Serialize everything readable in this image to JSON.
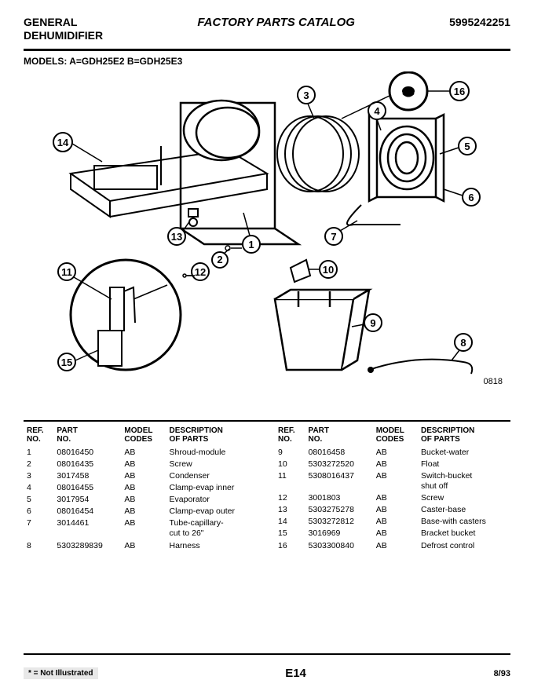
{
  "header": {
    "brand": "GENERAL",
    "product": "DEHUMIDIFIER",
    "title": "FACTORY PARTS CATALOG",
    "catalog_no": "5995242251"
  },
  "models_line": "MODELS:   A=GDH25E2   B=GDH25E3",
  "diagram": {
    "code": "0818",
    "callouts": [
      "1",
      "2",
      "3",
      "4",
      "5",
      "6",
      "7",
      "8",
      "9",
      "10",
      "11",
      "12",
      "13",
      "14",
      "15",
      "16"
    ]
  },
  "table": {
    "headers": {
      "ref": "REF.\nNO.",
      "part": "PART\nNO.",
      "model": "MODEL\nCODES",
      "desc": "DESCRIPTION\nOF PARTS"
    },
    "left": [
      {
        "ref": "1",
        "part": "08016450",
        "model": "AB",
        "desc": "Shroud-module"
      },
      {
        "ref": "2",
        "part": "08016435",
        "model": "AB",
        "desc": "Screw"
      },
      {
        "ref": "3",
        "part": "3017458",
        "model": "AB",
        "desc": "Condenser"
      },
      {
        "ref": "4",
        "part": "08016455",
        "model": "AB",
        "desc": "Clamp-evap inner"
      },
      {
        "ref": "5",
        "part": "3017954",
        "model": "AB",
        "desc": "Evaporator"
      },
      {
        "ref": "6",
        "part": "08016454",
        "model": "AB",
        "desc": "Clamp-evap outer"
      },
      {
        "ref": "7",
        "part": "3014461",
        "model": "AB",
        "desc": "Tube-capillary-\ncut to 26\""
      },
      {
        "ref": "8",
        "part": "5303289839",
        "model": "AB",
        "desc": "Harness"
      }
    ],
    "right": [
      {
        "ref": "9",
        "part": "08016458",
        "model": "AB",
        "desc": "Bucket-water"
      },
      {
        "ref": "10",
        "part": "5303272520",
        "model": "AB",
        "desc": "Float"
      },
      {
        "ref": "11",
        "part": "5308016437",
        "model": "AB",
        "desc": "Switch-bucket\nshut off"
      },
      {
        "ref": "12",
        "part": "3001803",
        "model": "AB",
        "desc": "Screw"
      },
      {
        "ref": "13",
        "part": "5303275278",
        "model": "AB",
        "desc": "Caster-base"
      },
      {
        "ref": "14",
        "part": "5303272812",
        "model": "AB",
        "desc": "Base-with casters"
      },
      {
        "ref": "15",
        "part": "3016969",
        "model": "AB",
        "desc": "Bracket bucket"
      },
      {
        "ref": "16",
        "part": "5303300840",
        "model": "AB",
        "desc": "Defrost control"
      }
    ]
  },
  "footer": {
    "note": "* = Not Illustrated",
    "page": "E14",
    "date": "8/93"
  }
}
